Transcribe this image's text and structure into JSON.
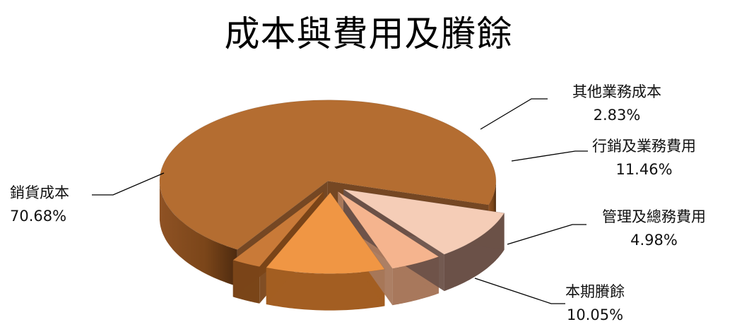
{
  "chart_data": {
    "type": "pie",
    "title": "成本與費用及賸餘",
    "slices": [
      {
        "name": "銷貨成本",
        "value": 70.68,
        "label": "70.68%"
      },
      {
        "name": "其他業務成本",
        "value": 2.83,
        "label": "2.83%"
      },
      {
        "name": "行銷及業務費用",
        "value": 11.46,
        "label": "11.46%"
      },
      {
        "name": "管理及總務費用",
        "value": 4.98,
        "label": "4.98%"
      },
      {
        "name": "本期賸餘",
        "value": 10.05,
        "label": "10.05%"
      }
    ],
    "colors": [
      "#b46d31",
      "#c97a38",
      "#f09644",
      "#f5b48e",
      "#f5cdb7"
    ],
    "side_colors": [
      "#6e3d17",
      "#7a4518",
      "#a35e22",
      "#a8785c",
      "#6b5148"
    ],
    "legend": "none",
    "style": "3d-exploded"
  }
}
